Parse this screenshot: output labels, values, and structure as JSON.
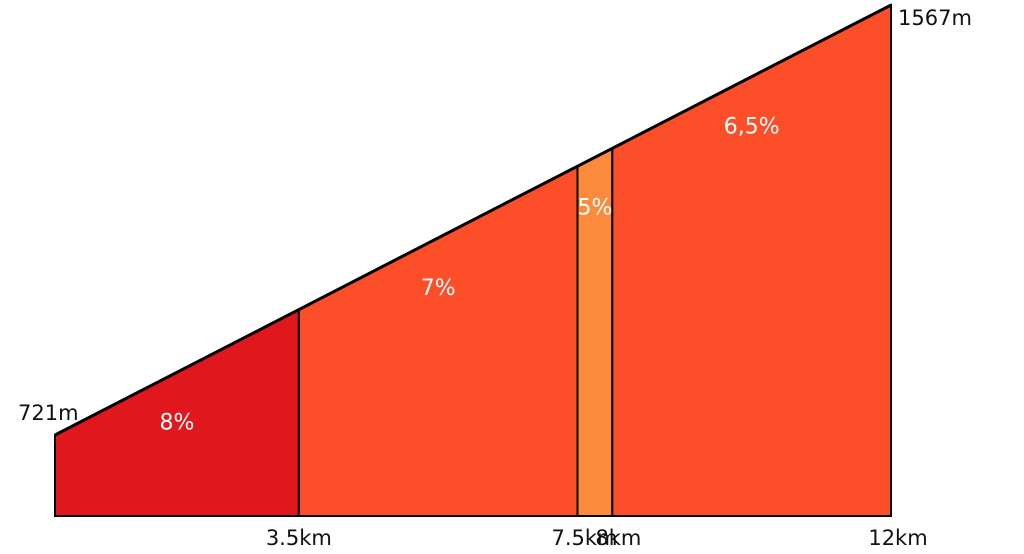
{
  "chart_data": {
    "type": "area",
    "x_unit": "km",
    "y_unit": "m",
    "start_elevation": 721,
    "start_elevation_label": "721m",
    "end_elevation": 1567,
    "end_elevation_label": "1567m",
    "boundaries_km": [
      0,
      3.5,
      7.5,
      8,
      12
    ],
    "tick_labels": [
      "3.5km",
      "7.5km",
      "8km",
      "12km"
    ],
    "segments": [
      {
        "from_km": 0,
        "to_km": 3.5,
        "gradient_label": "8%",
        "color": "#e0181d"
      },
      {
        "from_km": 3.5,
        "to_km": 7.5,
        "gradient_label": "7%",
        "color": "#fb4e29"
      },
      {
        "from_km": 7.5,
        "to_km": 8,
        "gradient_label": "5%",
        "color": "#fb8a3c"
      },
      {
        "from_km": 8,
        "to_km": 12,
        "gradient_label": "6,5%",
        "color": "#fb4e29"
      }
    ],
    "title": "",
    "xlabel": "",
    "ylabel": ""
  }
}
